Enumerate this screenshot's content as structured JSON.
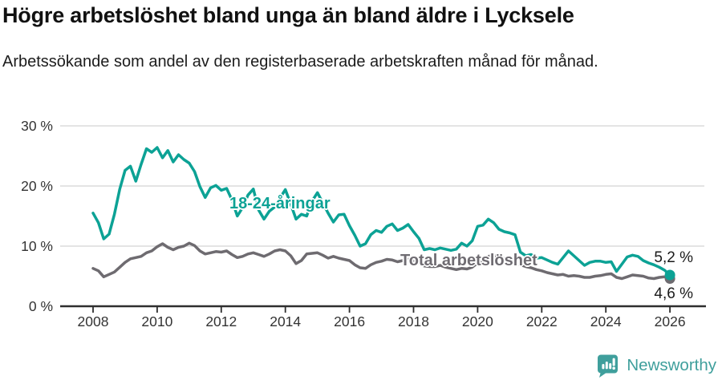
{
  "header": {
    "title": "Högre arbetslöshet bland unga än bland äldre i Lycksele",
    "subtitle": "Arbetssökande som andel av den registerbaserade arbetskraften månad för månad."
  },
  "chart_data": {
    "type": "line",
    "title": "Högre arbetslöshet bland unga än bland äldre i Lycksele",
    "subtitle": "Arbetssökande som andel av den registerbaserade arbetskraften månad för månad.",
    "xlabel": "",
    "ylabel": "",
    "grid": "horizontal-only",
    "legend_position": "inline-labels-on-lines",
    "x_start_year": 2008,
    "x_step_months": 2,
    "x_ticks": [
      2008,
      2010,
      2012,
      2014,
      2016,
      2018,
      2020,
      2022,
      2024,
      2026
    ],
    "ylim": [
      0,
      30
    ],
    "y_ticks": [
      {
        "value": 0,
        "label": "0 %"
      },
      {
        "value": 10,
        "label": "10 %"
      },
      {
        "value": 20,
        "label": "20 %"
      },
      {
        "value": 30,
        "label": "30 %"
      }
    ],
    "series": [
      {
        "name": "18-24-åringar",
        "color": "#0ca295",
        "end_label": "5,2 %",
        "end_value": 5.2,
        "values": [
          15.5,
          13.9,
          11.2,
          12.0,
          15.3,
          19.5,
          22.6,
          23.3,
          20.8,
          23.6,
          26.2,
          25.6,
          26.4,
          24.7,
          25.9,
          24.0,
          25.2,
          24.4,
          23.8,
          22.4,
          19.9,
          18.1,
          19.7,
          20.1,
          19.3,
          19.6,
          17.7,
          15.0,
          16.4,
          18.5,
          19.5,
          16.0,
          14.5,
          15.8,
          16.5,
          18.0,
          19.4,
          17.0,
          14.5,
          15.3,
          15.0,
          17.5,
          18.9,
          17.2,
          15.5,
          14.0,
          15.2,
          15.3,
          13.4,
          11.8,
          10.0,
          10.4,
          11.9,
          12.6,
          12.3,
          13.3,
          13.7,
          12.6,
          13.0,
          13.6,
          12.4,
          11.3,
          9.4,
          9.6,
          9.4,
          9.7,
          9.5,
          9.3,
          9.5,
          10.5,
          10.0,
          10.9,
          13.3,
          13.5,
          14.5,
          13.9,
          12.8,
          12.4,
          12.2,
          11.9,
          9.0,
          8.4,
          8.6,
          8.0,
          8.1,
          7.7,
          7.3,
          7.0,
          8.1,
          9.2,
          8.4,
          7.6,
          6.8,
          7.3,
          7.5,
          7.5,
          7.3,
          7.4,
          5.8,
          7.0,
          8.2,
          8.5,
          8.3,
          7.6,
          7.2,
          6.9,
          6.5,
          6.0,
          5.2
        ]
      },
      {
        "name": "Total arbetslöshet",
        "color": "#6e6b70",
        "end_label": "4,6 %",
        "end_value": 4.6,
        "values": [
          6.3,
          5.9,
          4.9,
          5.3,
          5.7,
          6.5,
          7.3,
          7.9,
          8.1,
          8.3,
          8.9,
          9.2,
          9.9,
          10.4,
          9.8,
          9.4,
          9.8,
          10.0,
          10.5,
          10.1,
          9.2,
          8.7,
          8.9,
          9.1,
          9.0,
          9.2,
          8.6,
          8.1,
          8.3,
          8.7,
          8.9,
          8.6,
          8.3,
          8.7,
          9.2,
          9.4,
          9.2,
          8.4,
          7.1,
          7.6,
          8.7,
          8.8,
          8.9,
          8.5,
          8.0,
          8.3,
          8.0,
          7.8,
          7.6,
          6.9,
          6.4,
          6.3,
          6.9,
          7.3,
          7.5,
          7.8,
          7.7,
          7.4,
          7.6,
          7.8,
          7.6,
          7.2,
          6.7,
          6.6,
          6.6,
          6.8,
          6.5,
          6.3,
          6.1,
          6.3,
          6.2,
          6.5,
          7.2,
          7.6,
          8.3,
          8.5,
          8.2,
          7.9,
          7.7,
          7.4,
          6.9,
          6.6,
          6.4,
          6.1,
          5.9,
          5.6,
          5.4,
          5.2,
          5.3,
          5.0,
          5.1,
          5.0,
          4.8,
          4.8,
          5.0,
          5.1,
          5.3,
          5.4,
          4.8,
          4.6,
          4.9,
          5.2,
          5.1,
          5.0,
          4.7,
          4.6,
          4.8,
          4.9,
          4.6
        ]
      }
    ]
  },
  "colors": {
    "youth_line": "#0ca295",
    "total_line": "#6e6b70",
    "gridline": "#dcdcdc",
    "axis": "#2e2e2e",
    "tick_text": "#333333",
    "brand_teal": "#3f9f9c"
  },
  "footer": {
    "brand": "Newsworthy"
  }
}
